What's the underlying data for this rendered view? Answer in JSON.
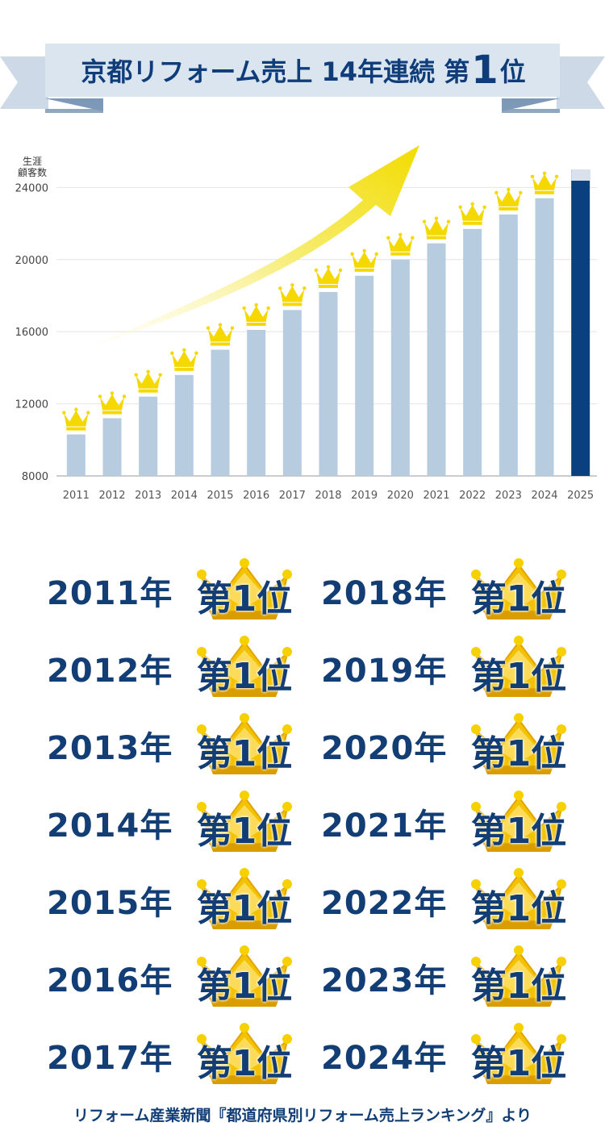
{
  "banner": {
    "title_prefix": "京都リフォーム売上 14年連続 第",
    "title_rank": "1",
    "title_suffix": "位"
  },
  "chart_data": {
    "type": "bar",
    "ylabel": "生涯\n顧客数",
    "ylim": [
      8000,
      25000
    ],
    "yticks": [
      8000,
      12000,
      16000,
      20000,
      24000
    ],
    "categories": [
      "2011",
      "2012",
      "2013",
      "2014",
      "2015",
      "2016",
      "2017",
      "2018",
      "2019",
      "2020",
      "2021",
      "2022",
      "2023",
      "2024",
      "2025"
    ],
    "values": [
      10300,
      11200,
      12400,
      13600,
      15000,
      16100,
      17200,
      18200,
      19100,
      20000,
      20900,
      21700,
      22500,
      23400,
      25000
    ],
    "bar_color": "#b8cce0",
    "highlight_color": "#0a3f80",
    "highlight_index": 14,
    "crown_color": "#f5d800",
    "grid": true
  },
  "awards": {
    "rank_label": "第1位",
    "left": [
      "2011年",
      "2012年",
      "2013年",
      "2014年",
      "2015年",
      "2016年",
      "2017年"
    ],
    "right": [
      "2018年",
      "2019年",
      "2020年",
      "2021年",
      "2022年",
      "2023年",
      "2024年"
    ]
  },
  "source": "リフォーム産業新聞『都道府県別リフォーム売上ランキング』より"
}
